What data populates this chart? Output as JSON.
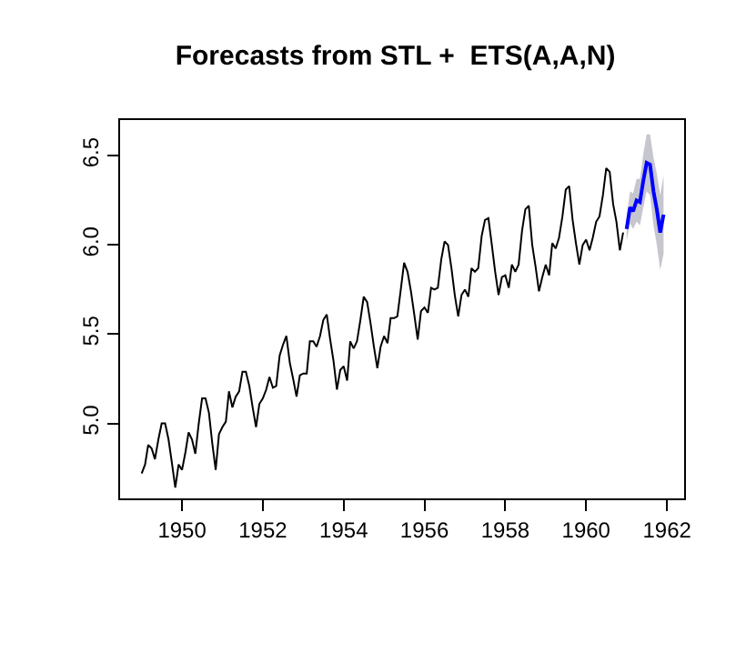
{
  "chart_data": {
    "type": "line",
    "title": "Forecasts from STL +  ETS(A,A,N)",
    "x": [
      "1949-01",
      "1949-02",
      "1949-03",
      "1949-04",
      "1949-05",
      "1949-06",
      "1949-07",
      "1949-08",
      "1949-09",
      "1949-10",
      "1949-11",
      "1949-12",
      "1950-01",
      "1950-02",
      "1950-03",
      "1950-04",
      "1950-05",
      "1950-06",
      "1950-07",
      "1950-08",
      "1950-09",
      "1950-10",
      "1950-11",
      "1950-12",
      "1951-01",
      "1951-02",
      "1951-03",
      "1951-04",
      "1951-05",
      "1951-06",
      "1951-07",
      "1951-08",
      "1951-09",
      "1951-10",
      "1951-11",
      "1951-12",
      "1952-01",
      "1952-02",
      "1952-03",
      "1952-04",
      "1952-05",
      "1952-06",
      "1952-07",
      "1952-08",
      "1952-09",
      "1952-10",
      "1952-11",
      "1952-12",
      "1953-01",
      "1953-02",
      "1953-03",
      "1953-04",
      "1953-05",
      "1953-06",
      "1953-07",
      "1953-08",
      "1953-09",
      "1953-10",
      "1953-11",
      "1953-12",
      "1954-01",
      "1954-02",
      "1954-03",
      "1954-04",
      "1954-05",
      "1954-06",
      "1954-07",
      "1954-08",
      "1954-09",
      "1954-10",
      "1954-11",
      "1954-12",
      "1955-01",
      "1955-02",
      "1955-03",
      "1955-04",
      "1955-05",
      "1955-06",
      "1955-07",
      "1955-08",
      "1955-09",
      "1955-10",
      "1955-11",
      "1955-12",
      "1956-01",
      "1956-02",
      "1956-03",
      "1956-04",
      "1956-05",
      "1956-06",
      "1956-07",
      "1956-08",
      "1956-09",
      "1956-10",
      "1956-11",
      "1956-12",
      "1957-01",
      "1957-02",
      "1957-03",
      "1957-04",
      "1957-05",
      "1957-06",
      "1957-07",
      "1957-08",
      "1957-09",
      "1957-10",
      "1957-11",
      "1957-12",
      "1958-01",
      "1958-02",
      "1958-03",
      "1958-04",
      "1958-05",
      "1958-06",
      "1958-07",
      "1958-08",
      "1958-09",
      "1958-10",
      "1958-11",
      "1958-12",
      "1959-01",
      "1959-02",
      "1959-03",
      "1959-04",
      "1959-05",
      "1959-06",
      "1959-07",
      "1959-08",
      "1959-09",
      "1959-10",
      "1959-11",
      "1959-12",
      "1960-01",
      "1960-02",
      "1960-03",
      "1960-04",
      "1960-05",
      "1960-06",
      "1960-07",
      "1960-08",
      "1960-09",
      "1960-10",
      "1960-11",
      "1960-12"
    ],
    "series": [
      {
        "color": "#000000",
        "values": [
          4.72,
          4.77,
          4.88,
          4.86,
          4.8,
          4.91,
          5.0,
          5.0,
          4.91,
          4.78,
          4.64,
          4.77,
          4.74,
          4.84,
          4.95,
          4.91,
          4.83,
          5.0,
          5.14,
          5.14,
          5.06,
          4.89,
          4.74,
          4.94,
          4.98,
          5.01,
          5.18,
          5.09,
          5.15,
          5.18,
          5.29,
          5.29,
          5.21,
          5.09,
          4.98,
          5.11,
          5.14,
          5.19,
          5.26,
          5.2,
          5.21,
          5.38,
          5.44,
          5.49,
          5.34,
          5.25,
          5.15,
          5.27,
          5.28,
          5.28,
          5.46,
          5.46,
          5.43,
          5.49,
          5.58,
          5.61,
          5.47,
          5.35,
          5.19,
          5.3,
          5.32,
          5.24,
          5.46,
          5.42,
          5.46,
          5.58,
          5.71,
          5.68,
          5.56,
          5.43,
          5.31,
          5.43,
          5.49,
          5.45,
          5.59,
          5.59,
          5.6,
          5.75,
          5.9,
          5.85,
          5.74,
          5.61,
          5.47,
          5.63,
          5.65,
          5.62,
          5.76,
          5.75,
          5.76,
          5.92,
          6.02,
          6.0,
          5.87,
          5.72,
          5.6,
          5.72,
          5.75,
          5.71,
          5.87,
          5.85,
          5.87,
          6.05,
          6.14,
          6.15,
          6.0,
          5.85,
          5.72,
          5.82,
          5.83,
          5.76,
          5.89,
          5.85,
          5.89,
          6.08,
          6.2,
          6.22,
          6.0,
          5.88,
          5.74,
          5.82,
          5.89,
          5.83,
          6.01,
          5.98,
          6.04,
          6.16,
          6.31,
          6.33,
          6.14,
          6.01,
          5.89,
          6.0,
          6.03,
          5.97,
          6.04,
          6.13,
          6.16,
          6.28,
          6.43,
          6.41,
          6.23,
          6.13,
          5.97,
          6.07
        ]
      },
      {
        "color": "#0000ff",
        "x": [
          "1961-01",
          "1961-02",
          "1961-03",
          "1961-04",
          "1961-05",
          "1961-06",
          "1961-07",
          "1961-08",
          "1961-09",
          "1961-10",
          "1961-11",
          "1961-12"
        ],
        "values": [
          6.09,
          6.21,
          6.19,
          6.25,
          6.24,
          6.36,
          6.46,
          6.45,
          6.3,
          6.2,
          6.07,
          6.17
        ],
        "lower": [
          6.02,
          6.12,
          6.09,
          6.13,
          6.11,
          6.21,
          6.3,
          6.28,
          6.11,
          6.0,
          5.86,
          5.95
        ],
        "upper": [
          6.16,
          6.3,
          6.29,
          6.37,
          6.37,
          6.51,
          6.62,
          6.62,
          6.49,
          6.4,
          6.28,
          6.39
        ]
      }
    ],
    "xlim": [
      "1948-06-20",
      "1962-06-05"
    ],
    "xticks": [
      "1950",
      "1952",
      "1954",
      "1956",
      "1958",
      "1960",
      "1962"
    ],
    "ylim": [
      4.58,
      6.7
    ],
    "yticks": [
      {
        "value": 5,
        "label": "5.0"
      },
      5.5,
      {
        "value": 6,
        "label": "6.0"
      },
      6.5
    ],
    "grid": false,
    "line_style": "solid",
    "marker": "none"
  }
}
